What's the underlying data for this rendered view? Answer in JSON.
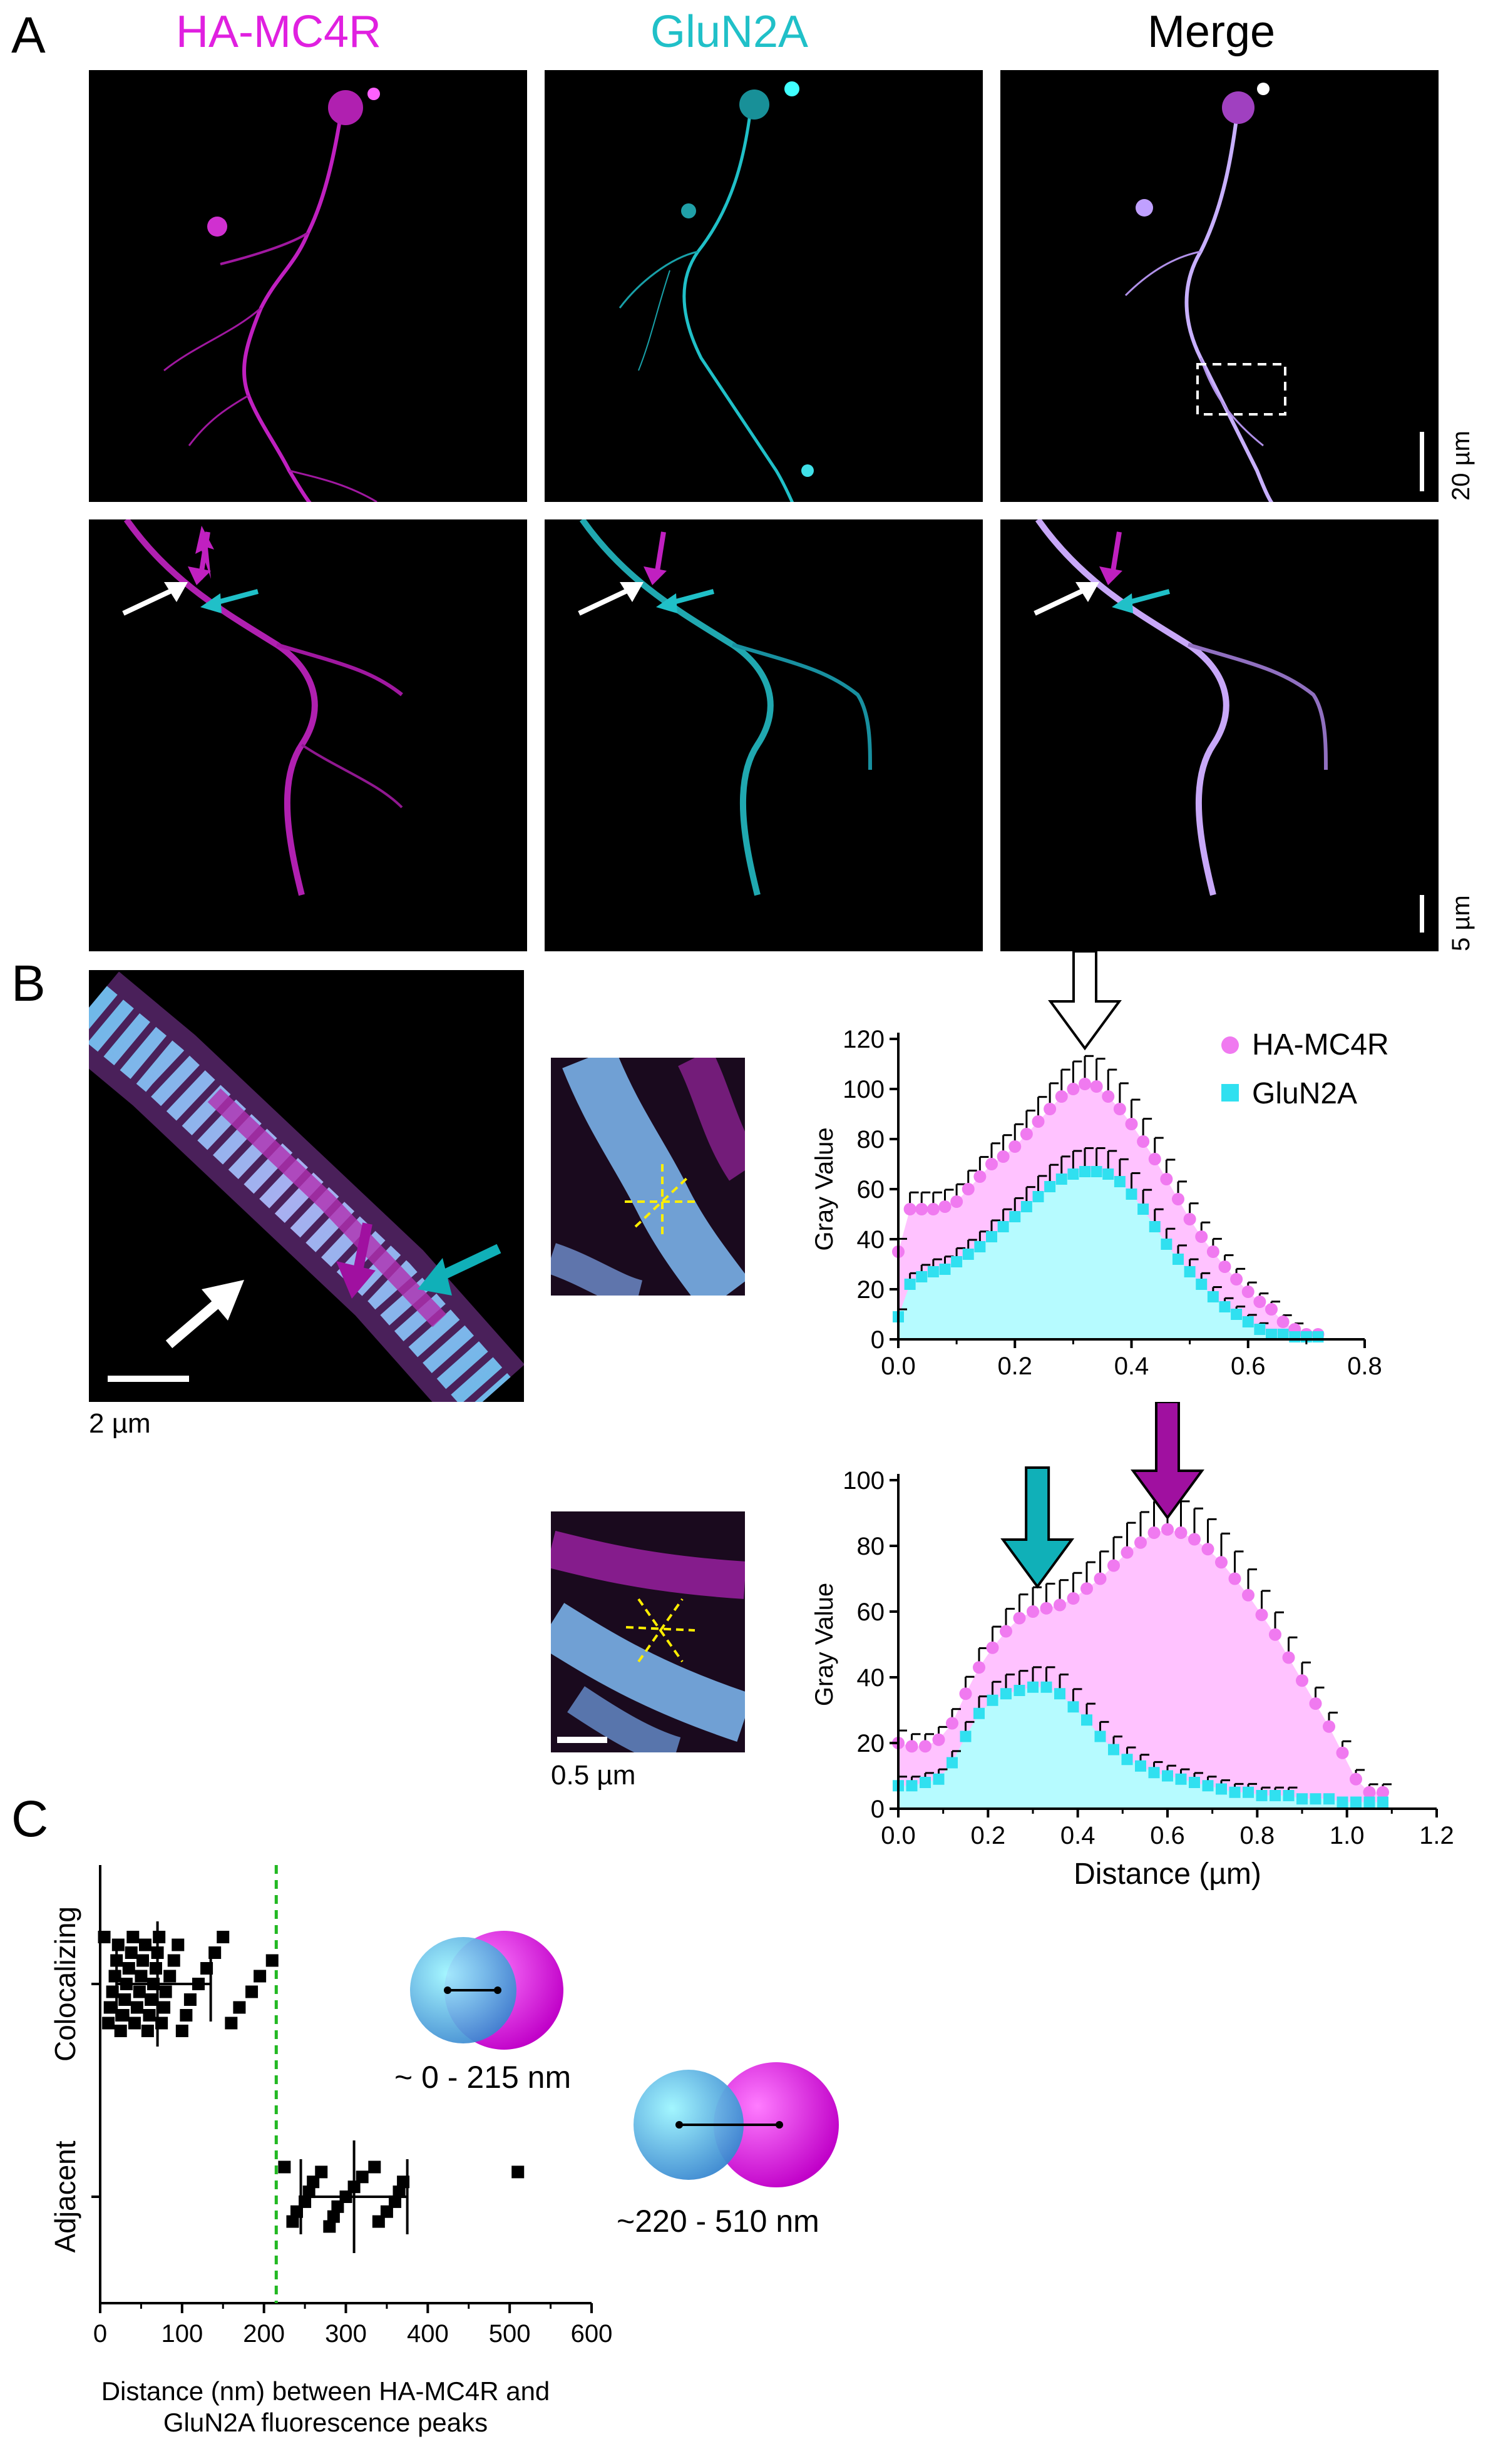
{
  "panels": {
    "A": "A",
    "B": "B",
    "C": "C"
  },
  "panel_a": {
    "columns": [
      "HA-MC4R",
      "GluN2A",
      "Merge"
    ],
    "column_colors": [
      "#e020e0",
      "#20c0c8",
      "#000000"
    ],
    "scale_top": "20 µm",
    "scale_bottom": "5 µm"
  },
  "panel_b": {
    "main_scale": "2 µm",
    "inset_scale": "0.5 µm"
  },
  "chart_data": [
    {
      "type": "area",
      "ylabel": "Gray Value",
      "xlabel": "",
      "xlim": [
        0,
        0.8
      ],
      "ylim": [
        0,
        120
      ],
      "xticks": [
        "0.0",
        "0.2",
        "0.4",
        "0.6",
        "0.8"
      ],
      "yticks": [
        "0",
        "20",
        "40",
        "60",
        "80",
        "100",
        "120"
      ],
      "legend": [
        "HA-MC4R",
        "GluN2A"
      ],
      "legend_placement": "top-right",
      "series": [
        {
          "name": "HA-MC4R",
          "color": "#f07af0",
          "x": [
            0.0,
            0.02,
            0.04,
            0.06,
            0.08,
            0.1,
            0.12,
            0.14,
            0.16,
            0.18,
            0.2,
            0.22,
            0.24,
            0.26,
            0.28,
            0.3,
            0.32,
            0.34,
            0.36,
            0.38,
            0.4,
            0.42,
            0.44,
            0.46,
            0.48,
            0.5,
            0.52,
            0.54,
            0.56,
            0.58,
            0.6,
            0.62,
            0.64,
            0.66,
            0.68,
            0.7,
            0.72
          ],
          "y": [
            35,
            52,
            52,
            52,
            53,
            55,
            60,
            65,
            70,
            73,
            77,
            82,
            87,
            92,
            97,
            100,
            102,
            101,
            97,
            92,
            86,
            79,
            72,
            64,
            56,
            48,
            41,
            35,
            29,
            24,
            19,
            15,
            12,
            7,
            4,
            2,
            2
          ]
        },
        {
          "name": "GluN2A",
          "color": "#30e0f0",
          "x": [
            0.0,
            0.02,
            0.04,
            0.06,
            0.08,
            0.1,
            0.12,
            0.14,
            0.16,
            0.18,
            0.2,
            0.22,
            0.24,
            0.26,
            0.28,
            0.3,
            0.32,
            0.34,
            0.36,
            0.38,
            0.4,
            0.42,
            0.44,
            0.46,
            0.48,
            0.5,
            0.52,
            0.54,
            0.56,
            0.58,
            0.6,
            0.62,
            0.64,
            0.66,
            0.68,
            0.7,
            0.72
          ],
          "y": [
            9,
            22,
            25,
            27,
            28,
            31,
            34,
            37,
            41,
            45,
            49,
            53,
            57,
            61,
            64,
            66,
            67,
            67,
            66,
            63,
            58,
            52,
            45,
            38,
            32,
            27,
            22,
            17,
            13,
            10,
            7,
            4,
            2,
            2,
            1,
            1,
            1
          ]
        }
      ],
      "annotation": "white down arrow at peak"
    },
    {
      "type": "area",
      "ylabel": "Gray Value",
      "xlabel": "Distance (µm)",
      "xlim": [
        0,
        1.2
      ],
      "ylim": [
        0,
        100
      ],
      "xticks": [
        "0.0",
        "0.2",
        "0.4",
        "0.6",
        "0.8",
        "1.0",
        "1.2"
      ],
      "yticks": [
        "0",
        "20",
        "40",
        "60",
        "80",
        "100"
      ],
      "series": [
        {
          "name": "HA-MC4R",
          "color": "#f07af0",
          "x": [
            0.0,
            0.03,
            0.06,
            0.09,
            0.12,
            0.15,
            0.18,
            0.21,
            0.24,
            0.27,
            0.3,
            0.33,
            0.36,
            0.39,
            0.42,
            0.45,
            0.48,
            0.51,
            0.54,
            0.57,
            0.6,
            0.63,
            0.66,
            0.69,
            0.72,
            0.75,
            0.78,
            0.81,
            0.84,
            0.87,
            0.9,
            0.93,
            0.96,
            0.99,
            1.02,
            1.05,
            1.08
          ],
          "y": [
            20,
            19,
            19,
            21,
            26,
            35,
            43,
            49,
            54,
            58,
            60,
            61,
            62,
            64,
            67,
            70,
            74,
            78,
            81,
            84,
            85,
            84,
            82,
            79,
            75,
            70,
            65,
            59,
            53,
            46,
            39,
            32,
            25,
            17,
            9,
            5,
            5
          ]
        },
        {
          "name": "GluN2A",
          "color": "#30e0f0",
          "x": [
            0.0,
            0.03,
            0.06,
            0.09,
            0.12,
            0.15,
            0.18,
            0.21,
            0.24,
            0.27,
            0.3,
            0.33,
            0.36,
            0.39,
            0.42,
            0.45,
            0.48,
            0.51,
            0.54,
            0.57,
            0.6,
            0.63,
            0.66,
            0.69,
            0.72,
            0.75,
            0.78,
            0.81,
            0.84,
            0.87,
            0.9,
            0.93,
            0.96,
            0.99,
            1.02,
            1.05,
            1.08
          ],
          "y": [
            7,
            7,
            8,
            9,
            14,
            22,
            29,
            33,
            35,
            36,
            37,
            37,
            35,
            31,
            27,
            22,
            18,
            15,
            13,
            11,
            10,
            9,
            8,
            7,
            6,
            5,
            5,
            4,
            4,
            4,
            3,
            3,
            3,
            2,
            2,
            2,
            2
          ]
        }
      ],
      "annotation": "cyan arrow at ~0.3, magenta arrow at ~0.6"
    },
    {
      "type": "scatter",
      "xlabel": "Distance (nm) between HA-MC4R and GluN2A fluorescence peaks",
      "xlabel_line1": "Distance (nm) between HA-MC4R and",
      "xlabel_line2": "GluN2A fluorescence peaks",
      "xlim": [
        0,
        600
      ],
      "xticks": [
        "0",
        "100",
        "200",
        "300",
        "400",
        "500",
        "600"
      ],
      "categories": [
        "Colocalizing",
        "Adjacent"
      ],
      "threshold_line": 215,
      "groups": [
        {
          "name": "Colocalizing",
          "values": [
            5,
            10,
            12,
            15,
            18,
            20,
            22,
            25,
            28,
            30,
            32,
            35,
            38,
            40,
            42,
            45,
            48,
            50,
            52,
            55,
            58,
            60,
            62,
            65,
            68,
            70,
            72,
            75,
            78,
            80,
            85,
            90,
            95,
            100,
            105,
            110,
            120,
            130,
            140,
            150,
            160,
            170,
            185,
            195,
            210
          ],
          "mean": 70,
          "sd_low": 20,
          "sd_high": 135,
          "range_label": "~ 0 - 215 nm"
        },
        {
          "name": "Adjacent",
          "values": [
            225,
            235,
            240,
            250,
            255,
            260,
            270,
            280,
            285,
            290,
            300,
            310,
            320,
            335,
            340,
            350,
            360,
            365,
            370,
            510
          ],
          "mean": 310,
          "sd_low": 245,
          "sd_high": 375,
          "range_label": "~220 - 510 nm"
        }
      ]
    }
  ]
}
